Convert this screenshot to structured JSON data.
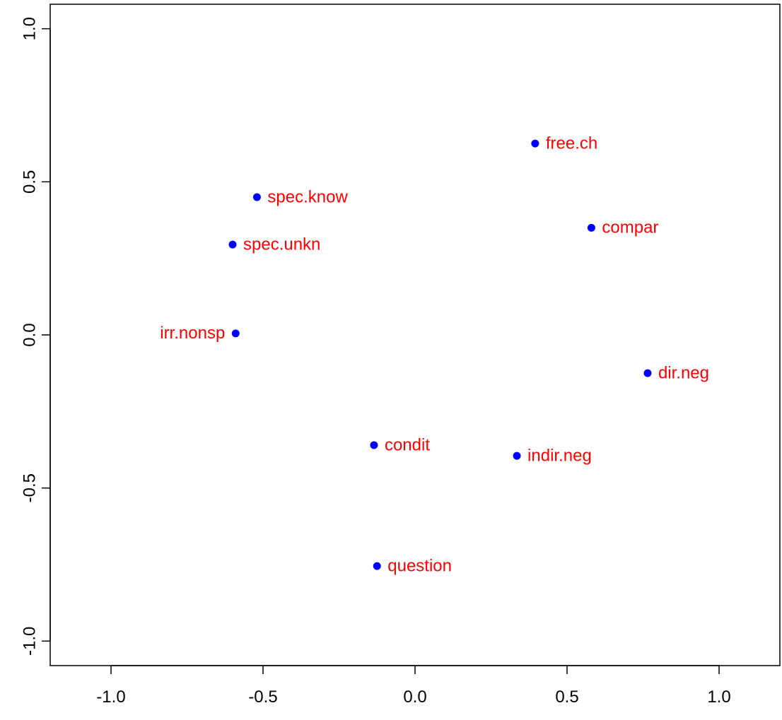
{
  "chart_data": {
    "type": "scatter",
    "title": "",
    "xlabel": "",
    "ylabel": "",
    "xlim": [
      -1.2,
      1.2
    ],
    "ylim": [
      -1.08,
      1.08
    ],
    "grid": false,
    "x_ticks": [
      {
        "value": -1.0,
        "label": "-1.0"
      },
      {
        "value": -0.5,
        "label": "-0.5"
      },
      {
        "value": 0.0,
        "label": "0.0"
      },
      {
        "value": 0.5,
        "label": "0.5"
      },
      {
        "value": 1.0,
        "label": "1.0"
      }
    ],
    "y_ticks": [
      {
        "value": -1.0,
        "label": "-1.0"
      },
      {
        "value": -0.5,
        "label": "-0.5"
      },
      {
        "value": 0.0,
        "label": "0.0"
      },
      {
        "value": 0.5,
        "label": "0.5"
      },
      {
        "value": 1.0,
        "label": "1.0"
      }
    ],
    "point_color": "#0000ff",
    "label_color": "#ff0000",
    "points": [
      {
        "label": "free.ch",
        "x": 0.395,
        "y": 0.625,
        "label_side": "right"
      },
      {
        "label": "spec.know",
        "x": -0.52,
        "y": 0.45,
        "label_side": "right"
      },
      {
        "label": "compar",
        "x": 0.58,
        "y": 0.35,
        "label_side": "right"
      },
      {
        "label": "spec.unkn",
        "x": -0.6,
        "y": 0.295,
        "label_side": "right"
      },
      {
        "label": "irr.nonsp",
        "x": -0.59,
        "y": 0.005,
        "label_side": "left"
      },
      {
        "label": "dir.neg",
        "x": 0.765,
        "y": -0.125,
        "label_side": "right"
      },
      {
        "label": "condit",
        "x": -0.135,
        "y": -0.36,
        "label_side": "right"
      },
      {
        "label": "indir.neg",
        "x": 0.335,
        "y": -0.395,
        "label_side": "right"
      },
      {
        "label": "question",
        "x": -0.125,
        "y": -0.755,
        "label_side": "right"
      }
    ]
  }
}
